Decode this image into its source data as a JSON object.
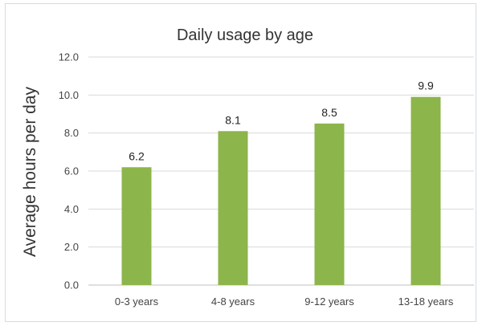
{
  "chart_data": {
    "type": "bar",
    "title": "Daily usage by age",
    "xlabel": "",
    "ylabel": "Average hours per day",
    "categories": [
      "0-3 years",
      "4-8 years",
      "9-12 years",
      "13-18 years"
    ],
    "values": [
      6.2,
      8.1,
      8.5,
      9.9
    ],
    "data_labels": [
      "6.2",
      "8.1",
      "8.5",
      "9.9"
    ],
    "ylim": [
      0,
      12
    ],
    "yticks": [
      "0.0",
      "2.0",
      "4.0",
      "6.0",
      "8.0",
      "10.0",
      "12.0"
    ],
    "grid": true,
    "legend": "none",
    "bar_color": "#8cb54b"
  }
}
